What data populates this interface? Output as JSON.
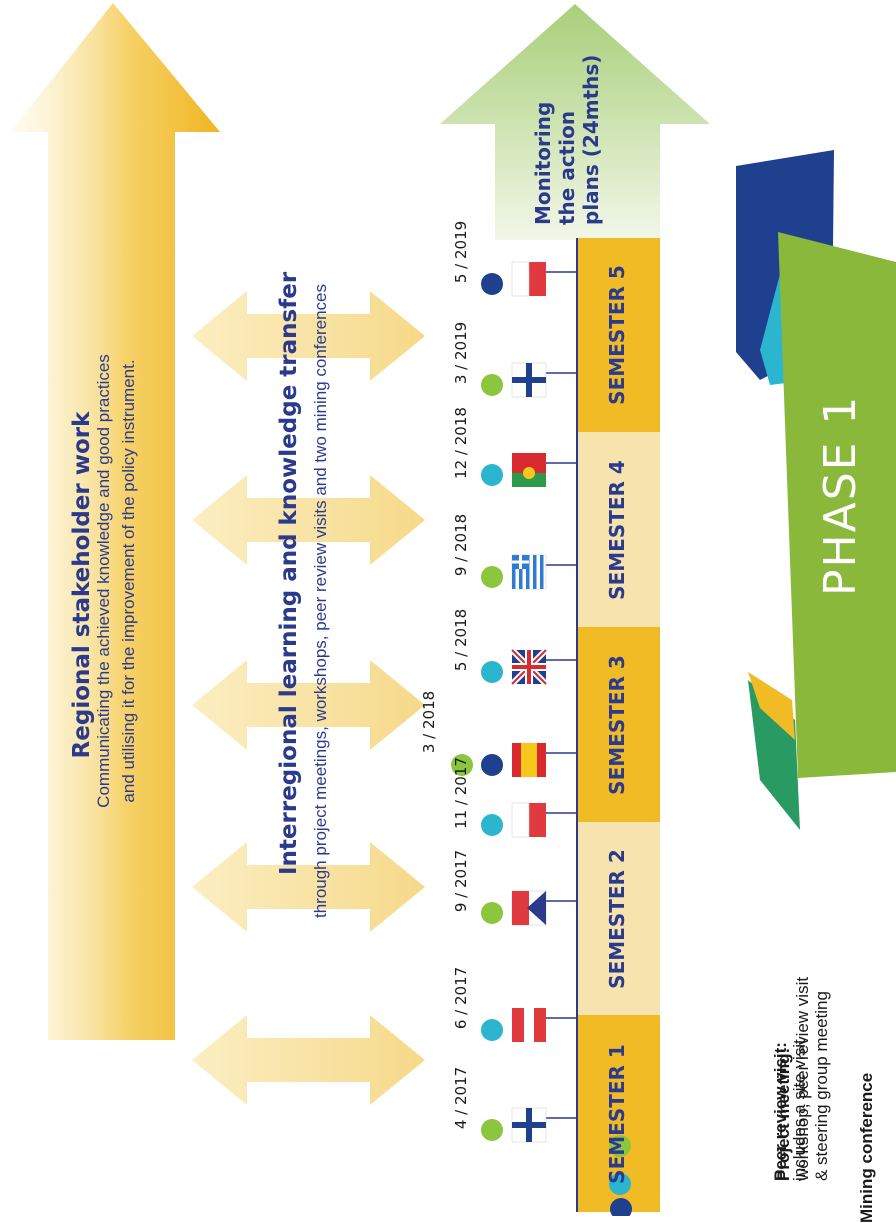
{
  "regional": {
    "title": "Regional stakeholder work",
    "line1": "Communicating the achieved knowledge and good practices",
    "line2": "and utilising it for the improvement of the policy instrument."
  },
  "interregional": {
    "title": "Interregional learning and knowledge transfer",
    "line1": "through project meetings, workshops, peer review visits and two mining conferences"
  },
  "monitoring": {
    "line1": "Monitoring",
    "line2": "the action",
    "line3": "plans (24mths)"
  },
  "phase_label": "PHASE  1",
  "semesters": [
    "SEMESTER 1",
    "SEMESTER 2",
    "SEMESTER 3",
    "SEMESTER 4",
    "SEMESTER 5"
  ],
  "events": [
    {
      "date": "4 / 2017",
      "type": "project meeting",
      "flag": "finland"
    },
    {
      "date": "6 / 2017",
      "type": "peer review visit",
      "flag": "austria"
    },
    {
      "date": "9 / 2017",
      "type": "project meeting",
      "flag": "czech"
    },
    {
      "date": "11 / 2017",
      "type": "peer review visit",
      "flag": "poland"
    },
    {
      "date": "3 / 2018",
      "type": "project meeting + mining conference",
      "flag": "spain"
    },
    {
      "date": "5 / 2018",
      "type": "peer review visit",
      "flag": "uk"
    },
    {
      "date": "9 / 2018",
      "type": "project meeting",
      "flag": "greece"
    },
    {
      "date": "12 / 2018",
      "type": "peer review visit",
      "flag": "portugal"
    },
    {
      "date": "3 / 2019",
      "type": "project meeting",
      "flag": "finland"
    },
    {
      "date": "5 / 2019",
      "type": "mining conference",
      "flag": "poland"
    }
  ],
  "legend": {
    "project_title": "Project meeting:",
    "project_desc1": "workshop, peer review visit",
    "project_desc2": "& steering group meeting",
    "peer_title": "Peer review visit:",
    "peer_desc": "includes a site visit",
    "mining_title": "Mining conference"
  },
  "colors": {
    "project": "#8cc63f",
    "peer": "#2bb5cf",
    "mining": "#1f3f8f",
    "semester_dark": "#f0bb25",
    "semester_light": "#f7e3ae",
    "phase_green": "#8ab83a",
    "text_blue": "#2b3a8c"
  }
}
